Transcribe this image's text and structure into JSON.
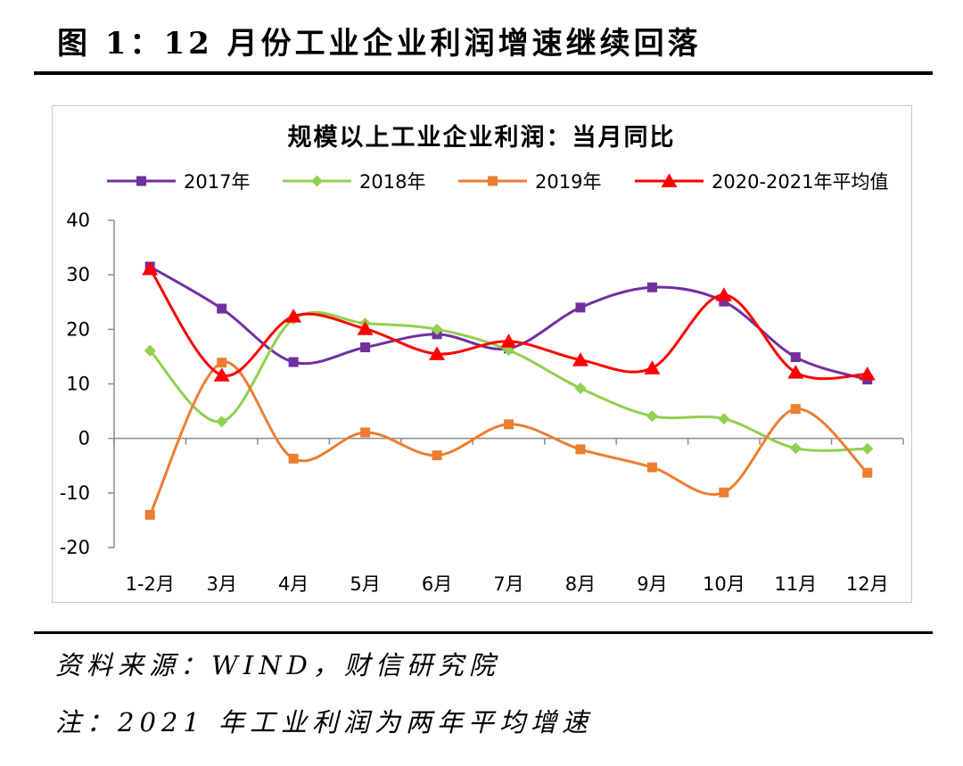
{
  "figure": {
    "title": "图 1：12 月份工业企业利润增速继续回落",
    "source": "资料来源：WIND，财信研究院",
    "note": "注：2021 年工业利润为两年平均增速"
  },
  "chart_data": {
    "type": "line",
    "title": "规模以上工业企业利润：当月同比",
    "categories": [
      "1-2月",
      "3月",
      "4月",
      "5月",
      "6月",
      "7月",
      "8月",
      "9月",
      "10月",
      "11月",
      "12月"
    ],
    "series": [
      {
        "name": "2017年",
        "color": "#7030A0",
        "marker": "square",
        "values": [
          31.5,
          23.8,
          14.0,
          16.7,
          19.1,
          16.5,
          24.0,
          27.7,
          25.1,
          14.9,
          10.8
        ]
      },
      {
        "name": "2018年",
        "color": "#92D050",
        "marker": "diamond",
        "values": [
          16.1,
          3.1,
          21.9,
          21.1,
          20.0,
          16.2,
          9.2,
          4.1,
          3.6,
          -1.8,
          -1.9
        ]
      },
      {
        "name": "2019年",
        "color": "#ED7D31",
        "marker": "square",
        "values": [
          -14.0,
          13.9,
          -3.7,
          1.1,
          -3.1,
          2.6,
          -2.0,
          -5.3,
          -9.9,
          5.4,
          -6.3
        ]
      },
      {
        "name": "2020-2021年平均值",
        "color": "#FF0000",
        "marker": "triangle",
        "values": [
          31.1,
          11.6,
          22.4,
          20.1,
          15.5,
          17.8,
          14.4,
          12.9,
          26.3,
          12.1,
          11.8
        ]
      }
    ],
    "ylim": [
      -20,
      40
    ],
    "yticks": [
      40,
      30,
      20,
      10,
      0,
      -10,
      -20
    ],
    "legend_position": "top",
    "grid": false,
    "smooth_lines": true
  }
}
